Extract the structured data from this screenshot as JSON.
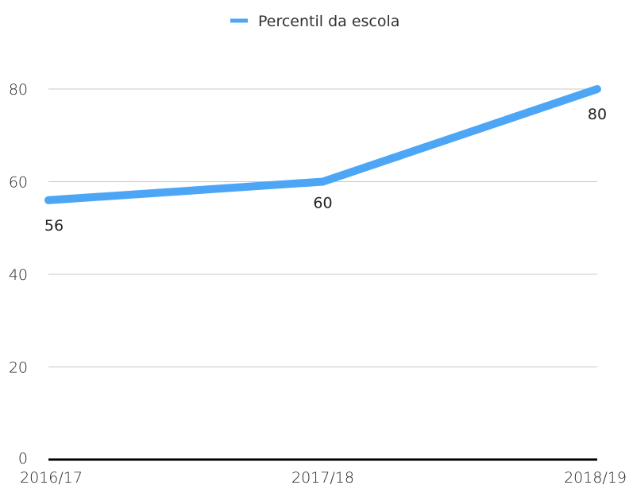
{
  "chart_data": {
    "type": "line",
    "categories": [
      "2016/17",
      "2017/18",
      "2018/19"
    ],
    "series": [
      {
        "name": "Percentil da escola",
        "values": [
          56,
          60,
          80
        ],
        "color": "#4DA6F5"
      }
    ],
    "data_labels": [
      "56",
      "60",
      "80"
    ],
    "y_ticks": [
      "0",
      "20",
      "40",
      "60",
      "80"
    ],
    "ylim": [
      0,
      100
    ],
    "grid": true,
    "legend_position": "top-center",
    "colors": {
      "grid": "#c8c8c8",
      "axis": "#000000",
      "text": "#222222"
    }
  }
}
